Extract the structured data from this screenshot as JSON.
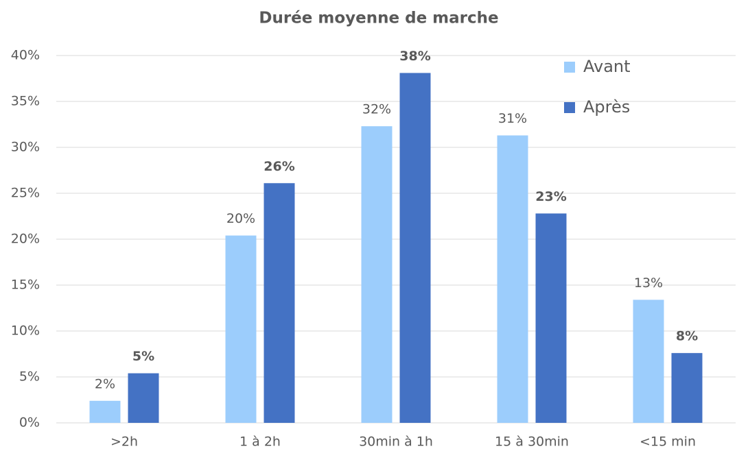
{
  "chart_data": {
    "type": "bar",
    "title": "Durée moyenne de marche",
    "categories": [
      ">2h",
      "1 à 2h",
      "30min à 1h",
      "15 à 30min",
      "<15 min"
    ],
    "series": [
      {
        "name": "Avant",
        "color": "#9ccdfc",
        "values": [
          2.4,
          20.4,
          32.3,
          31.3,
          13.4
        ],
        "value_labels": [
          "2%",
          "20%",
          "32%",
          "31%",
          "13%"
        ]
      },
      {
        "name": "Après",
        "color": "#4472c4",
        "values": [
          5.4,
          26.1,
          38.1,
          22.8,
          7.6
        ],
        "value_labels": [
          "5%",
          "26%",
          "38%",
          "23%",
          "8%"
        ]
      }
    ],
    "ylim": [
      0,
      40
    ],
    "yticks": [
      {
        "value": 0,
        "label": "0%"
      },
      {
        "value": 5,
        "label": "5%"
      },
      {
        "value": 10,
        "label": "10%"
      },
      {
        "value": 15,
        "label": "15%"
      },
      {
        "value": 20,
        "label": "20%"
      },
      {
        "value": 25,
        "label": "25%"
      },
      {
        "value": 30,
        "label": "30%"
      },
      {
        "value": 35,
        "label": "35%"
      },
      {
        "value": 40,
        "label": "40%"
      }
    ],
    "grid": true,
    "legend": "top-right"
  }
}
